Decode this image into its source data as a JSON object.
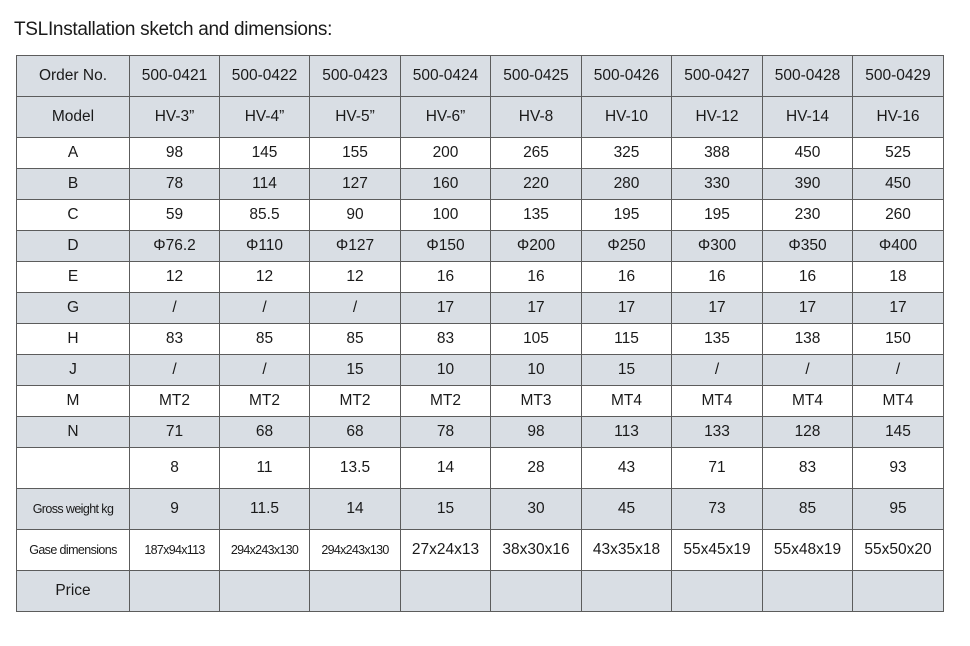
{
  "title": "TSLInstallation sketch and dimensions:",
  "table": {
    "rows": [
      {
        "label": "Order No.",
        "cells": [
          "500-0421",
          "500-0422",
          "500-0423",
          "500-0424",
          "500-0425",
          "500-0426",
          "500-0427",
          "500-0428",
          "500-0429"
        ]
      },
      {
        "label": "Model",
        "cells": [
          "HV-3”",
          "HV-4”",
          "HV-5”",
          "HV-6”",
          "HV-8",
          "HV-10",
          "HV-12",
          "HV-14",
          "HV-16"
        ]
      },
      {
        "label": "A",
        "cells": [
          "98",
          "145",
          "155",
          "200",
          "265",
          "325",
          "388",
          "450",
          "525"
        ]
      },
      {
        "label": "B",
        "cells": [
          "78",
          "114",
          "127",
          "160",
          "220",
          "280",
          "330",
          "390",
          "450"
        ]
      },
      {
        "label": "C",
        "cells": [
          "59",
          "85.5",
          "90",
          "100",
          "135",
          "195",
          "195",
          "230",
          "260"
        ]
      },
      {
        "label": "D",
        "cells": [
          "Φ76.2",
          "Φ110",
          "Φ127",
          "Φ150",
          "Φ200",
          "Φ250",
          "Φ300",
          "Φ350",
          "Φ400"
        ]
      },
      {
        "label": "E",
        "cells": [
          "12",
          "12",
          "12",
          "16",
          "16",
          "16",
          "16",
          "16",
          "18"
        ]
      },
      {
        "label": "G",
        "cells": [
          "/",
          "/",
          "/",
          "17",
          "17",
          "17",
          "17",
          "17",
          "17"
        ]
      },
      {
        "label": "H",
        "cells": [
          "83",
          "85",
          "85",
          "83",
          "105",
          "115",
          "135",
          "138",
          "150"
        ]
      },
      {
        "label": "J",
        "cells": [
          "/",
          "/",
          "15",
          "10",
          "10",
          "15",
          "/",
          "/",
          "/"
        ]
      },
      {
        "label": "M",
        "cells": [
          "MT2",
          "MT2",
          "MT2",
          "MT2",
          "MT3",
          "MT4",
          "MT4",
          "MT4",
          "MT4"
        ]
      },
      {
        "label": "N",
        "cells": [
          "71",
          "68",
          "68",
          "78",
          "98",
          "113",
          "133",
          "128",
          "145"
        ]
      },
      {
        "label": "",
        "cells": [
          "8",
          "11",
          "13.5",
          "14",
          "28",
          "43",
          "71",
          "83",
          "93"
        ]
      },
      {
        "label": "Gross weight kg",
        "cells": [
          "9",
          "11.5",
          "14",
          "15",
          "30",
          "45",
          "73",
          "85",
          "95"
        ]
      },
      {
        "label": "Gase dimensions",
        "cells": [
          "187x94x113",
          "294x243x130",
          "294x243x130",
          "27x24x13",
          "38x30x16",
          "43x35x18",
          "55x45x19",
          "55x48x19",
          "55x50x20"
        ]
      },
      {
        "label": "Price",
        "cells": [
          "",
          "",
          "",
          "",
          "",
          "",
          "",
          "",
          ""
        ]
      }
    ]
  }
}
